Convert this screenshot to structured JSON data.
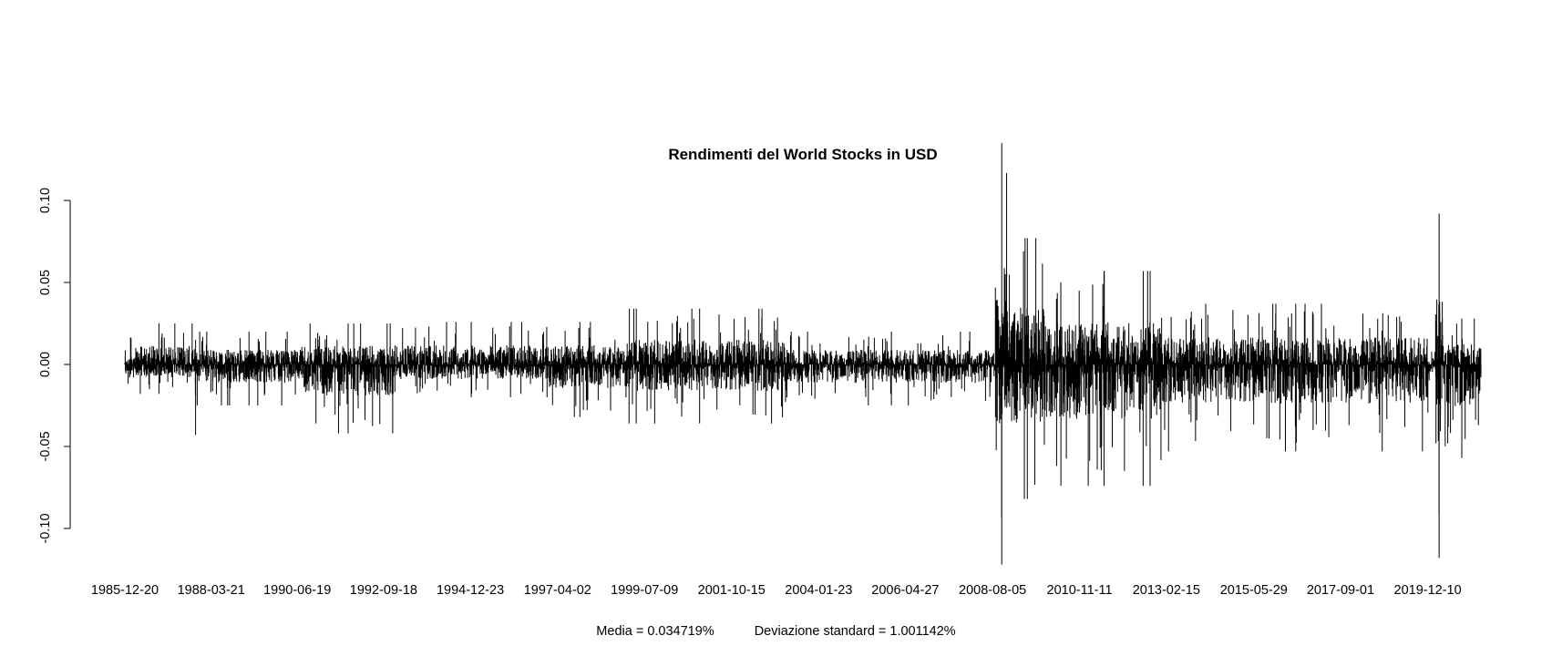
{
  "chart_data": {
    "type": "line",
    "title": "Rendimenti del World Stocks in USD",
    "xlabel": "",
    "ylabel": "",
    "ylim": [
      -0.12,
      0.135
    ],
    "yticks": [
      -0.1,
      -0.05,
      0.0,
      0.05,
      0.1
    ],
    "ytick_labels": [
      "-0.10",
      "-0.05",
      "0.00",
      "0.05",
      "0.10"
    ],
    "x_range": [
      "1985-12-20",
      "2021-04-30"
    ],
    "xtick_labels": [
      "1985-12-20",
      "1988-03-21",
      "1990-06-19",
      "1992-09-18",
      "1994-12-23",
      "1997-04-02",
      "1999-07-09",
      "2001-10-15",
      "2004-01-23",
      "2006-04-27",
      "2008-08-05",
      "2010-11-11",
      "2013-02-15",
      "2015-05-29",
      "2017-09-01",
      "2019-12-10"
    ],
    "grid": false,
    "legend": "none",
    "line_color": "#000000",
    "series": [
      {
        "values_by_period": [
          {
            "period": "1985-12-20/1987-09-30",
            "range": [
              -0.018,
              0.025
            ]
          },
          {
            "period": "1987-10-19/1987-10-30",
            "range": [
              -0.043,
              0.015
            ]
          },
          {
            "period": "1987-11-01/1990-07-31",
            "range": [
              -0.025,
              0.02
            ]
          },
          {
            "period": "1990-08-01/1992-12-31",
            "range": [
              -0.042,
              0.025
            ]
          },
          {
            "period": "1993-01-01/1996-12-31",
            "range": [
              -0.02,
              0.026
            ]
          },
          {
            "period": "1997-01-01/1998-08-31",
            "range": [
              -0.032,
              0.026
            ]
          },
          {
            "period": "1998-09-01/2003-03-31",
            "range": [
              -0.036,
              0.034
            ]
          },
          {
            "period": "2003-04-01/2008-08-31",
            "range": [
              -0.025,
              0.02
            ]
          },
          {
            "period": "2008-09-01/2008-12-31",
            "range": [
              -0.122,
              0.135
            ]
          },
          {
            "period": "2009-01-01/2009-12-31",
            "range": [
              -0.082,
              0.077
            ]
          },
          {
            "period": "2010-01-01/2012-12-31",
            "range": [
              -0.074,
              0.057
            ]
          },
          {
            "period": "2013-01-01/2019-12-31",
            "range": [
              -0.053,
              0.037
            ]
          },
          {
            "period": "2020-02-24/2020-04-30",
            "range": [
              -0.118,
              0.092
            ]
          },
          {
            "period": "2020-05-01/2021-04-30",
            "range": [
              -0.057,
              0.028
            ]
          }
        ]
      }
    ]
  },
  "footer": {
    "mean_text": "Media = 0.034719%",
    "std_text": "Deviazione standard = 1.001142%"
  }
}
